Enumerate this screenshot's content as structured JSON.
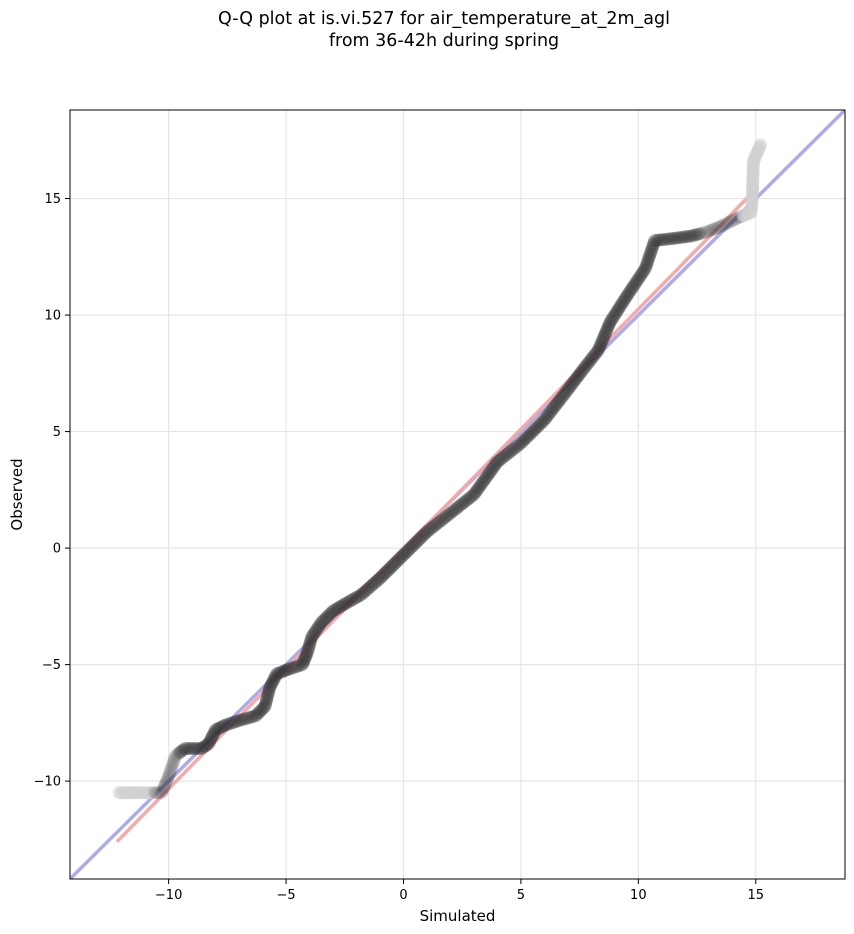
{
  "chart_data": {
    "type": "scatter",
    "title_lines": [
      "Q-Q plot at is.vi.527 for air_temperature_at_2m_agl",
      "from 36-42h during spring"
    ],
    "xlabel": "Simulated",
    "ylabel": "Observed",
    "xlim": [
      -14.2,
      18.8
    ],
    "ylim": [
      -14.2,
      18.8
    ],
    "xticks": [
      -10,
      -5,
      0,
      5,
      10,
      15
    ],
    "yticks": [
      -10,
      -5,
      0,
      5,
      10,
      15
    ],
    "xtick_labels": [
      "−10",
      "−5",
      "0",
      "5",
      "10",
      "15"
    ],
    "ytick_labels": [
      "−10",
      "−5",
      "0",
      "5",
      "10",
      "15"
    ],
    "grid": true,
    "reference_lines": [
      {
        "role": "identity",
        "color": "#a6a8ea",
        "x": [
          -14.2,
          18.8
        ],
        "y": [
          -14.2,
          18.8
        ]
      },
      {
        "role": "fit",
        "color": "#f7a5a5",
        "x": [
          -12.2,
          15.1
        ],
        "y": [
          -12.6,
          15.5
        ]
      }
    ],
    "colors": {
      "points": "#2f2f2f",
      "faint_points": "#cfcfcf",
      "grid": "#e6e6e6"
    },
    "series": [
      {
        "knots": [
          [
            -12.1,
            -10.5
          ],
          [
            -11.0,
            -10.5
          ],
          [
            -10.3,
            -10.5
          ],
          [
            -10.0,
            -9.8
          ],
          [
            -9.7,
            -8.9
          ],
          [
            -9.3,
            -8.6
          ],
          [
            -8.6,
            -8.6
          ],
          [
            -8.3,
            -8.4
          ],
          [
            -8.0,
            -7.8
          ],
          [
            -7.6,
            -7.6
          ],
          [
            -7.0,
            -7.4
          ],
          [
            -6.3,
            -7.2
          ],
          [
            -5.9,
            -6.8
          ],
          [
            -5.7,
            -6.0
          ],
          [
            -5.4,
            -5.4
          ],
          [
            -4.9,
            -5.2
          ],
          [
            -4.3,
            -5.0
          ],
          [
            -4.1,
            -4.5
          ],
          [
            -3.9,
            -3.8
          ],
          [
            -3.5,
            -3.2
          ],
          [
            -3.0,
            -2.7
          ],
          [
            -2.5,
            -2.4
          ],
          [
            -1.8,
            -2.0
          ],
          [
            -1.0,
            -1.3
          ],
          [
            0.0,
            -0.3
          ],
          [
            1.0,
            0.7
          ],
          [
            2.0,
            1.5
          ],
          [
            3.0,
            2.3
          ],
          [
            4.0,
            3.7
          ],
          [
            5.0,
            4.5
          ],
          [
            6.0,
            5.5
          ],
          [
            7.0,
            6.8
          ],
          [
            7.6,
            7.6
          ],
          [
            8.3,
            8.5
          ],
          [
            8.8,
            9.7
          ],
          [
            9.5,
            10.8
          ],
          [
            10.3,
            12.0
          ],
          [
            10.7,
            13.2
          ],
          [
            11.6,
            13.3
          ],
          [
            12.3,
            13.4
          ],
          [
            13.0,
            13.6
          ],
          [
            13.5,
            13.8
          ],
          [
            14.3,
            14.2
          ],
          [
            14.8,
            14.4
          ],
          [
            14.85,
            15.0
          ],
          [
            14.9,
            16.6
          ],
          [
            15.2,
            17.3
          ]
        ]
      }
    ]
  }
}
